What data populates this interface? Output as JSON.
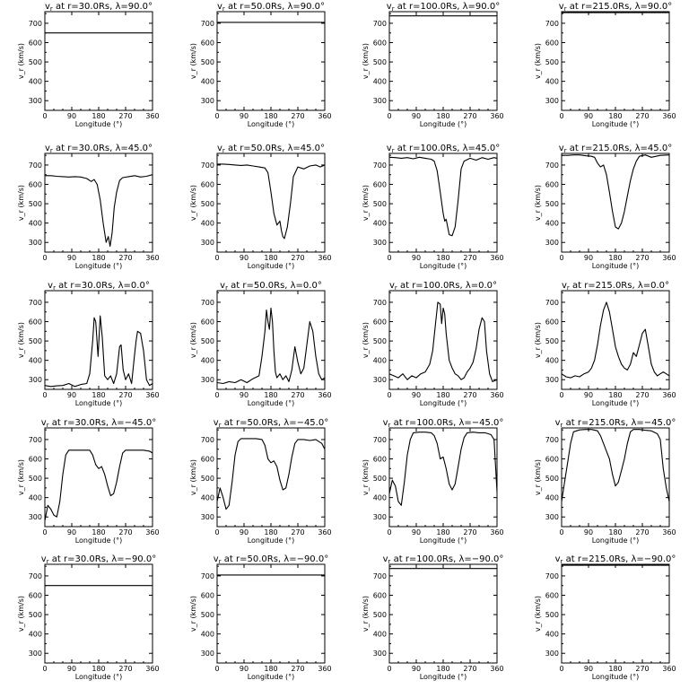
{
  "figure": {
    "xlabel": "Longitude (°)",
    "ylabel": "v_r (km/s)",
    "ylim": [
      250,
      760
    ],
    "xlim": [
      0,
      360
    ],
    "xticks": [
      0,
      90,
      180,
      270,
      360
    ],
    "yticks": [
      300,
      400,
      500,
      600,
      700
    ]
  },
  "chart_data": [
    {
      "type": "line",
      "title": "v_r at r=30.0Rs, λ=90.0°",
      "title_prefix": "v",
      "title_sub": "r",
      "title_rest": " at r=30.0Rs, λ=90.0°",
      "x": [
        0,
        360
      ],
      "y": [
        650,
        650
      ]
    },
    {
      "type": "line",
      "title": "v_r at r=50.0Rs, λ=90.0°",
      "title_prefix": "v",
      "title_sub": "r",
      "title_rest": " at r=50.0Rs, λ=90.0°",
      "x": [
        0,
        360
      ],
      "y": [
        705,
        705
      ]
    },
    {
      "type": "line",
      "title": "v_r at r=100.0Rs, λ=90.0°",
      "title_prefix": "v",
      "title_sub": "r",
      "title_rest": " at r=100.0Rs, λ=90.0°",
      "x": [
        0,
        360
      ],
      "y": [
        738,
        738
      ]
    },
    {
      "type": "line",
      "title": "v_r at r=215.0Rs, λ=90.0°",
      "title_prefix": "v",
      "title_sub": "r",
      "title_rest": " at r=215.0Rs, λ=90.0°",
      "x": [
        0,
        360
      ],
      "y": [
        755,
        755
      ]
    },
    {
      "type": "line",
      "title": "v_r at r=30.0Rs, λ=45.0°",
      "title_prefix": "v",
      "title_sub": "r",
      "title_rest": " at r=30.0Rs, λ=45.0°",
      "x": [
        0,
        20,
        40,
        60,
        80,
        100,
        120,
        140,
        155,
        165,
        175,
        185,
        195,
        205,
        212,
        218,
        225,
        232,
        240,
        250,
        260,
        280,
        300,
        320,
        340,
        360
      ],
      "y": [
        645,
        645,
        642,
        640,
        638,
        640,
        638,
        630,
        615,
        625,
        600,
        520,
        400,
        300,
        330,
        280,
        350,
        480,
        560,
        620,
        635,
        640,
        645,
        638,
        642,
        650
      ]
    },
    {
      "type": "line",
      "title": "v_r at r=50.0Rs, λ=45.0°",
      "title_prefix": "v",
      "title_sub": "r",
      "title_rest": " at r=50.0Rs, λ=45.0°",
      "x": [
        0,
        20,
        40,
        60,
        80,
        100,
        120,
        140,
        160,
        170,
        180,
        190,
        200,
        210,
        215,
        220,
        225,
        235,
        245,
        255,
        270,
        290,
        310,
        330,
        345,
        360
      ],
      "y": [
        705,
        705,
        703,
        700,
        698,
        700,
        695,
        690,
        685,
        660,
        560,
        450,
        390,
        410,
        360,
        330,
        320,
        380,
        500,
        640,
        690,
        680,
        695,
        700,
        690,
        700
      ]
    },
    {
      "type": "line",
      "title": "v_r at r=100.0Rs, λ=45.0°",
      "title_prefix": "v",
      "title_sub": "r",
      "title_rest": " at r=100.0Rs, λ=45.0°",
      "x": [
        0,
        20,
        40,
        60,
        80,
        100,
        120,
        140,
        150,
        160,
        170,
        180,
        185,
        190,
        200,
        210,
        220,
        230,
        240,
        250,
        270,
        290,
        310,
        330,
        350,
        360
      ],
      "y": [
        740,
        738,
        735,
        738,
        732,
        740,
        735,
        730,
        720,
        670,
        560,
        450,
        410,
        420,
        340,
        335,
        380,
        520,
        680,
        720,
        735,
        725,
        738,
        730,
        738,
        735
      ]
    },
    {
      "type": "line",
      "title": "v_r at r=215.0Rs, λ=45.0°",
      "title_prefix": "v",
      "title_sub": "r",
      "title_rest": " at r=215.0Rs, λ=45.0°",
      "x": [
        0,
        20,
        40,
        60,
        80,
        100,
        110,
        120,
        130,
        140,
        150,
        160,
        170,
        180,
        190,
        200,
        210,
        220,
        230,
        240,
        250,
        260,
        280,
        300,
        330,
        360
      ],
      "y": [
        750,
        750,
        752,
        752,
        748,
        745,
        740,
        710,
        690,
        700,
        650,
        560,
        460,
        380,
        370,
        400,
        460,
        540,
        620,
        680,
        720,
        745,
        752,
        740,
        750,
        752
      ]
    },
    {
      "type": "line",
      "title": "v_r at r=30.0Rs, λ=0.0°",
      "title_prefix": "v",
      "title_sub": "r",
      "title_rest": " at r=30.0Rs, λ=0.0°",
      "x": [
        0,
        20,
        40,
        60,
        80,
        100,
        120,
        140,
        150,
        160,
        165,
        170,
        178,
        185,
        192,
        200,
        210,
        220,
        230,
        240,
        250,
        255,
        262,
        270,
        280,
        290,
        300,
        305,
        310,
        320,
        330,
        340,
        350,
        360
      ],
      "y": [
        270,
        265,
        268,
        270,
        280,
        265,
        275,
        280,
        330,
        500,
        620,
        600,
        420,
        630,
        520,
        320,
        300,
        320,
        280,
        330,
        470,
        480,
        350,
        300,
        330,
        280,
        430,
        500,
        550,
        540,
        450,
        300,
        270,
        280
      ]
    },
    {
      "type": "line",
      "title": "v_r at r=50.0Rs, λ=0.0°",
      "title_prefix": "v",
      "title_sub": "r",
      "title_rest": " at r=50.0Rs, λ=0.0°",
      "x": [
        0,
        20,
        40,
        60,
        80,
        100,
        120,
        140,
        150,
        160,
        165,
        170,
        175,
        180,
        185,
        190,
        195,
        200,
        210,
        220,
        230,
        240,
        250,
        260,
        270,
        280,
        290,
        300,
        310,
        320,
        330,
        340,
        350,
        360
      ],
      "y": [
        285,
        280,
        290,
        285,
        300,
        285,
        305,
        320,
        420,
        550,
        660,
        600,
        560,
        670,
        600,
        450,
        340,
        310,
        330,
        300,
        320,
        290,
        350,
        470,
        390,
        330,
        360,
        480,
        600,
        550,
        420,
        330,
        300,
        310
      ]
    },
    {
      "type": "line",
      "title": "v_r at r=100.0Rs, λ=0.0°",
      "title_prefix": "v",
      "title_sub": "r",
      "title_rest": " at r=100.0Rs, λ=0.0°",
      "x": [
        0,
        15,
        30,
        45,
        60,
        75,
        90,
        105,
        120,
        135,
        145,
        155,
        162,
        170,
        175,
        180,
        185,
        190,
        200,
        210,
        220,
        230,
        240,
        250,
        260,
        270,
        280,
        290,
        300,
        310,
        318,
        325,
        335,
        345,
        360
      ],
      "y": [
        330,
        320,
        310,
        330,
        300,
        320,
        310,
        330,
        340,
        380,
        450,
        600,
        700,
        690,
        590,
        670,
        640,
        540,
        400,
        360,
        330,
        320,
        300,
        310,
        340,
        360,
        390,
        460,
        560,
        620,
        600,
        450,
        330,
        290,
        300
      ]
    },
    {
      "type": "line",
      "title": "v_r at r=215.0Rs, λ=0.0°",
      "title_prefix": "v",
      "title_sub": "r",
      "title_rest": " at r=215.0Rs, λ=0.0°",
      "x": [
        0,
        15,
        30,
        45,
        60,
        75,
        90,
        100,
        110,
        120,
        130,
        140,
        150,
        160,
        170,
        180,
        190,
        200,
        210,
        220,
        230,
        240,
        250,
        260,
        270,
        280,
        290,
        300,
        310,
        320,
        330,
        340,
        350,
        360
      ],
      "y": [
        330,
        315,
        310,
        320,
        315,
        330,
        340,
        360,
        400,
        480,
        580,
        660,
        700,
        650,
        560,
        470,
        420,
        380,
        360,
        350,
        380,
        440,
        420,
        480,
        540,
        560,
        470,
        380,
        340,
        320,
        330,
        340,
        330,
        320
      ]
    },
    {
      "type": "line",
      "title": "v_r at r=30.0Rs, λ=−45.0°",
      "title_prefix": "v",
      "title_sub": "r",
      "title_rest": " at r=30.0Rs, λ=−45.0°",
      "x": [
        0,
        10,
        20,
        30,
        40,
        50,
        60,
        70,
        80,
        90,
        110,
        130,
        150,
        160,
        170,
        180,
        190,
        200,
        210,
        220,
        230,
        240,
        250,
        260,
        270,
        290,
        310,
        330,
        350,
        360
      ],
      "y": [
        280,
        360,
        340,
        310,
        300,
        380,
        520,
        620,
        645,
        645,
        645,
        645,
        645,
        620,
        570,
        550,
        560,
        520,
        460,
        410,
        420,
        480,
        560,
        630,
        645,
        645,
        645,
        645,
        640,
        630
      ]
    },
    {
      "type": "line",
      "title": "v_r at r=50.0Rs, λ=−45.0°",
      "title_prefix": "v",
      "title_sub": "r",
      "title_rest": " at r=50.0Rs, λ=−45.0°",
      "x": [
        0,
        10,
        20,
        30,
        40,
        50,
        60,
        70,
        80,
        90,
        110,
        130,
        150,
        160,
        170,
        180,
        190,
        200,
        210,
        220,
        230,
        240,
        250,
        260,
        270,
        290,
        310,
        330,
        350,
        360
      ],
      "y": [
        380,
        450,
        400,
        340,
        360,
        480,
        620,
        690,
        705,
        705,
        705,
        705,
        700,
        670,
        600,
        580,
        590,
        560,
        490,
        440,
        450,
        520,
        610,
        680,
        700,
        700,
        695,
        700,
        680,
        650
      ]
    },
    {
      "type": "line",
      "title": "v_r at r=100.0Rs, λ=−45.0°",
      "title_prefix": "v",
      "title_sub": "r",
      "title_rest": " at r=100.0Rs, λ=−45.0°",
      "x": [
        0,
        10,
        20,
        30,
        40,
        50,
        60,
        70,
        80,
        100,
        120,
        140,
        150,
        160,
        170,
        180,
        190,
        200,
        210,
        220,
        230,
        240,
        250,
        260,
        280,
        300,
        320,
        340,
        350,
        360
      ],
      "y": [
        420,
        490,
        460,
        380,
        360,
        480,
        620,
        700,
        735,
        738,
        738,
        735,
        720,
        680,
        600,
        610,
        550,
        470,
        440,
        470,
        560,
        650,
        710,
        735,
        738,
        735,
        735,
        725,
        700,
        430
      ]
    },
    {
      "type": "line",
      "title": "v_r at r=215.0Rs, λ=−45.0°",
      "title_prefix": "v",
      "title_sub": "r",
      "title_rest": " at r=215.0Rs, λ=−45.0°",
      "x": [
        0,
        10,
        20,
        30,
        40,
        60,
        80,
        100,
        120,
        130,
        140,
        150,
        160,
        170,
        180,
        190,
        200,
        210,
        220,
        230,
        240,
        260,
        280,
        300,
        320,
        330,
        340,
        350,
        360
      ],
      "y": [
        380,
        480,
        580,
        680,
        740,
        750,
        752,
        752,
        745,
        720,
        680,
        640,
        600,
        520,
        460,
        480,
        540,
        600,
        680,
        740,
        752,
        752,
        748,
        745,
        730,
        700,
        550,
        450,
        380
      ]
    },
    {
      "type": "line",
      "title": "v_r at r=30.0Rs, λ=−90.0°",
      "title_prefix": "v",
      "title_sub": "r",
      "title_rest": " at r=30.0Rs, λ=−90.0°",
      "x": [
        0,
        360
      ],
      "y": [
        650,
        650
      ]
    },
    {
      "type": "line",
      "title": "v_r at r=50.0Rs, λ=−90.0°",
      "title_prefix": "v",
      "title_sub": "r",
      "title_rest": " at r=50.0Rs, λ=−90.0°",
      "x": [
        0,
        360
      ],
      "y": [
        705,
        705
      ]
    },
    {
      "type": "line",
      "title": "v_r at r=100.0Rs, λ=−90.0°",
      "title_prefix": "v",
      "title_sub": "r",
      "title_rest": " at r=100.0Rs, λ=−90.0°",
      "x": [
        0,
        360
      ],
      "y": [
        738,
        738
      ]
    },
    {
      "type": "line",
      "title": "v_r at r=215.0Rs, λ=−90.0°",
      "title_prefix": "v",
      "title_sub": "r",
      "title_rest": " at r=215.0Rs, λ=−90.0°",
      "x": [
        0,
        360
      ],
      "y": [
        755,
        755
      ]
    }
  ]
}
